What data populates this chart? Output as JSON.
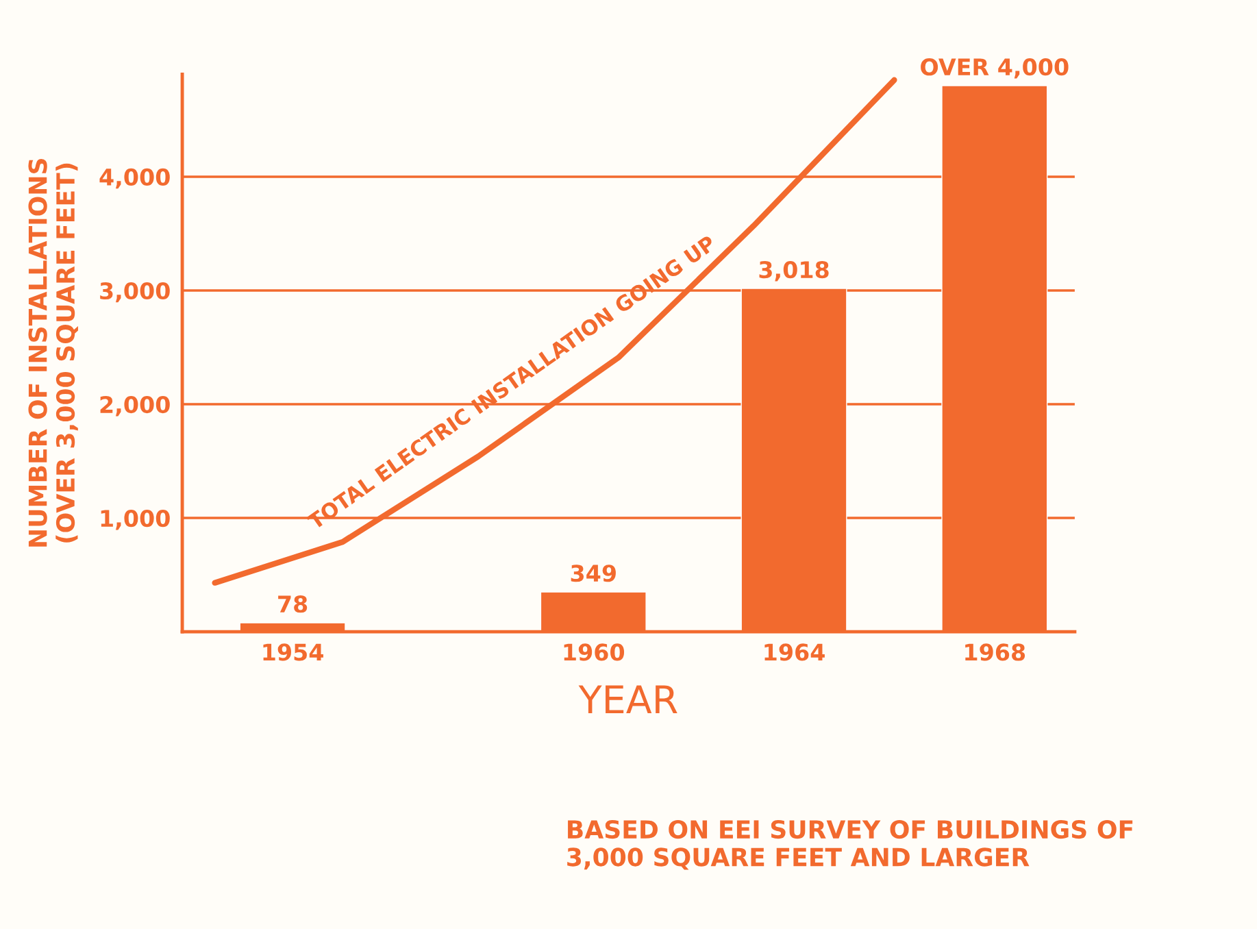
{
  "chart_data": {
    "type": "bar",
    "xlabel": "YEAR",
    "ylabel": "NUMBER OF INSTALLATIONS\n(OVER 3,000 SQUARE FEET)",
    "x": [
      1954,
      1960,
      1964,
      1968
    ],
    "xlim": [
      1951.8,
      1969.6
    ],
    "xticks": [
      1954,
      1960,
      1964,
      1968
    ],
    "ylim": [
      0,
      4900
    ],
    "yticks": [
      {
        "value": 1000,
        "label": "1,000"
      },
      {
        "value": 2000,
        "label": "2,000"
      },
      {
        "value": 3000,
        "label": "3,000"
      },
      {
        "value": 4000,
        "label": "4,000"
      }
    ],
    "grid": "y",
    "series": [
      {
        "color": "#f26a2e",
        "values": [
          78,
          349,
          3018,
          4800
        ],
        "value_labels": [
          "78",
          "349",
          "3,018",
          "OVER 4,000"
        ]
      },
      {
        "type": "line",
        "name": "TOTAL ELECTRIC INSTALLATION GOING UP",
        "color": "#f26a2e",
        "x": [
          1952.45,
          1955.0,
          1957.7,
          1960.5,
          1963.2,
          1966.0
        ],
        "values": [
          430,
          790,
          1540,
          2410,
          3570,
          4850
        ]
      }
    ],
    "annotations": [
      "BASED ON EEI SURVEY OF BUILDINGS OF\n3,000 SQUARE FEET AND LARGER"
    ]
  }
}
